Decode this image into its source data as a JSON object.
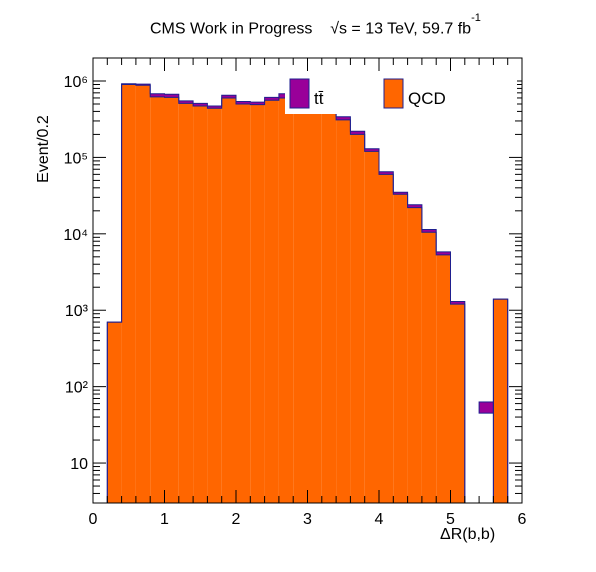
{
  "header": {
    "title_left": "CMS Work in Progress",
    "sqrt_symbol": "√",
    "title_right": "s = 13 TeV, 59.7 fb",
    "title_exp": "-1"
  },
  "chart_data": {
    "type": "bar",
    "stacked": true,
    "histogram": true,
    "xlabel": "ΔR(b,b)",
    "ylabel": "Event/0.2",
    "xlim": [
      0,
      6
    ],
    "ylim": [
      3,
      2000000
    ],
    "log_y": true,
    "bin_width": 0.2,
    "bin_edges": [
      0.2,
      0.4,
      0.6,
      0.8,
      1.0,
      1.2,
      1.4,
      1.6,
      1.8,
      2.0,
      2.2,
      2.4,
      2.6,
      2.8,
      3.0,
      3.2,
      3.4,
      3.6,
      3.8,
      4.0,
      4.2,
      4.4,
      4.6,
      4.8,
      5.0,
      5.2,
      5.4,
      5.6,
      5.8
    ],
    "x_ticks": [
      "0",
      "1",
      "2",
      "3",
      "4",
      "5",
      "6"
    ],
    "y_ticks": [
      "10",
      "10²",
      "10³",
      "10⁴",
      "10⁵",
      "10⁶"
    ],
    "y_tick_values": [
      10,
      100,
      1000,
      10000,
      100000,
      1000000
    ],
    "series": [
      {
        "name": "QCD",
        "color": "#ff6600",
        "values": [
          700,
          900000,
          880000,
          620000,
          610000,
          510000,
          470000,
          440000,
          600000,
          500000,
          490000,
          560000,
          600000,
          580000,
          470000,
          400000,
          310000,
          200000,
          120000,
          60000,
          33000,
          22000,
          10500,
          5300,
          1200,
          0,
          0,
          1400
        ]
      },
      {
        "name": "tt̄",
        "color": "#990099",
        "values": [
          0,
          20000,
          30000,
          60000,
          60000,
          40000,
          40000,
          30000,
          50000,
          40000,
          40000,
          50000,
          80000,
          70000,
          50000,
          40000,
          30000,
          20000,
          10000,
          5000,
          2000,
          2000,
          900,
          500,
          100,
          0,
          0,
          0
        ],
        "extra_bin": {
          "x_from": 5.4,
          "x_to": 5.6,
          "bottom": 45,
          "top": 63
        }
      }
    ],
    "legend": [
      {
        "label": "tt̄",
        "color": "#990099"
      },
      {
        "label": "QCD",
        "color": "#ff6600"
      }
    ],
    "legend_position": "top-right",
    "grid": false
  }
}
